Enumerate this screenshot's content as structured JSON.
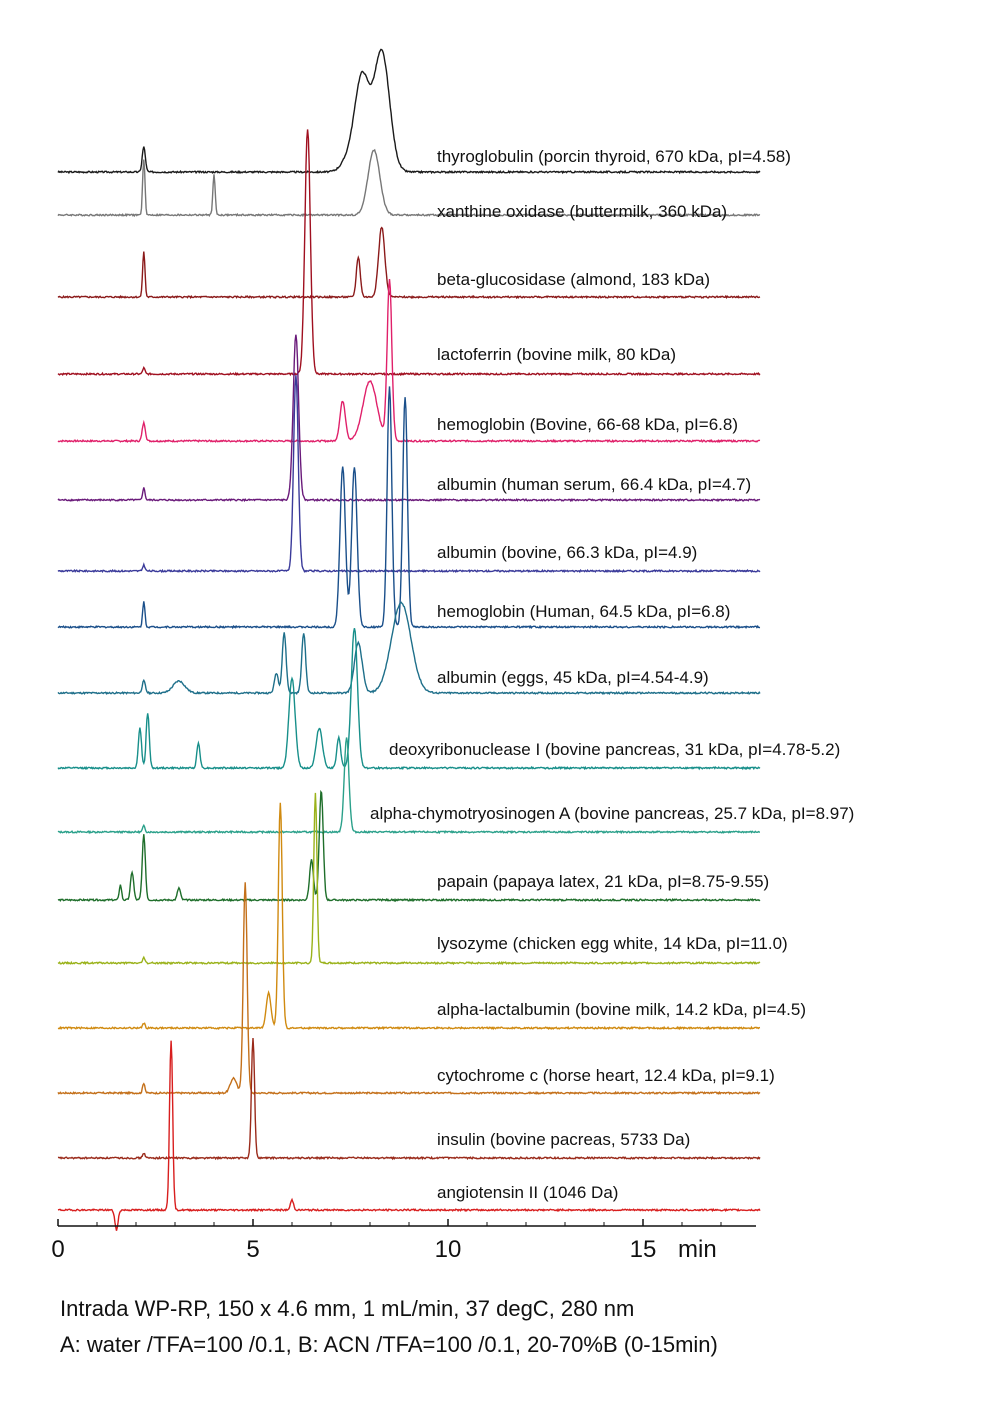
{
  "chart_data": {
    "type": "line",
    "xlabel": "min",
    "x_ticks": [
      0,
      5,
      10,
      15
    ],
    "xlim": [
      0,
      18
    ],
    "caption_line1": "Intrada WP-RP, 150 x 4.6 mm, 1 mL/min, 37 degC, 280 nm",
    "caption_line2": "A: water /TFA=100 /0.1, B: ACN /TFA=100 /0.1, 20-70%B (0-15min)",
    "series": [
      {
        "name": "thyroglobulin (porcin thyroid, 670 kDa, pI=4.58)",
        "color": "#1a1a1a",
        "peaks": [
          [
            2.2,
            25,
            0.04
          ],
          [
            7.8,
            90,
            0.18
          ],
          [
            8.3,
            120,
            0.2
          ],
          [
            7.5,
            15,
            0.2
          ]
        ]
      },
      {
        "name": "xanthine oxidase (buttermilk, 360 kDa)",
        "color": "#777777",
        "peaks": [
          [
            2.2,
            55,
            0.03
          ],
          [
            4.0,
            40,
            0.03
          ],
          [
            8.1,
            65,
            0.15
          ]
        ]
      },
      {
        "name": "beta-glucosidase (almond, 183 kDa)",
        "color": "#8b1a1a",
        "peaks": [
          [
            2.2,
            45,
            0.03
          ],
          [
            7.7,
            40,
            0.05
          ],
          [
            8.3,
            70,
            0.08
          ]
        ]
      },
      {
        "name": "lactoferrin (bovine milk, 80 kDa)",
        "color": "#a01020",
        "peaks": [
          [
            2.2,
            6,
            0.03
          ],
          [
            6.4,
            245,
            0.07
          ]
        ]
      },
      {
        "name": "hemoglobin (Bovine, 66-68 kDa, pI=6.8)",
        "color": "#e0206a",
        "peaks": [
          [
            2.2,
            18,
            0.04
          ],
          [
            7.3,
            40,
            0.07
          ],
          [
            8.0,
            60,
            0.18
          ],
          [
            8.5,
            160,
            0.06
          ]
        ]
      },
      {
        "name": "albumin (human serum, 66.4 kDa, pI=4.7)",
        "color": "#6a1a7a",
        "peaks": [
          [
            2.2,
            12,
            0.03
          ],
          [
            6.1,
            165,
            0.07
          ]
        ]
      },
      {
        "name": "albumin (bovine, 66.3 kDa, pI=4.9)",
        "color": "#3a3a9a",
        "peaks": [
          [
            2.2,
            6,
            0.03
          ],
          [
            6.1,
            195,
            0.06
          ]
        ]
      },
      {
        "name": "hemoglobin (Human, 64.5 kDa, pI=6.8)",
        "color": "#1a4f8a",
        "peaks": [
          [
            2.2,
            25,
            0.03
          ],
          [
            7.3,
            160,
            0.07
          ],
          [
            7.6,
            160,
            0.07
          ],
          [
            8.5,
            240,
            0.06
          ],
          [
            8.9,
            230,
            0.06
          ]
        ]
      },
      {
        "name": "albumin (eggs, 45 kDa, pI=4.54-4.9)",
        "color": "#1e6f8a",
        "peaks": [
          [
            2.2,
            12,
            0.04
          ],
          [
            3.1,
            12,
            0.15
          ],
          [
            5.6,
            20,
            0.05
          ],
          [
            5.8,
            60,
            0.05
          ],
          [
            6.3,
            60,
            0.05
          ],
          [
            7.7,
            50,
            0.1
          ],
          [
            8.8,
            90,
            0.25
          ]
        ]
      },
      {
        "name": "deoxyribonuclease I (bovine pancreas, 31 kDa, pI=4.78-5.2)",
        "color": "#178f8a",
        "peaks": [
          [
            2.1,
            40,
            0.04
          ],
          [
            2.3,
            55,
            0.04
          ],
          [
            3.6,
            25,
            0.04
          ],
          [
            6.0,
            90,
            0.08
          ],
          [
            6.7,
            40,
            0.08
          ],
          [
            7.2,
            30,
            0.05
          ],
          [
            7.6,
            140,
            0.08
          ]
        ]
      },
      {
        "name": "alpha-chymotryosinogen A (bovine pancreas, 25.7 kDa, pI=8.97)",
        "color": "#2aa08a",
        "peaks": [
          [
            2.2,
            6,
            0.03
          ],
          [
            7.4,
            95,
            0.06
          ]
        ]
      },
      {
        "name": "papain (papaya latex, 21 kDa, pI=8.75-9.55)",
        "color": "#1e6e2a",
        "peaks": [
          [
            1.6,
            15,
            0.03
          ],
          [
            1.9,
            28,
            0.04
          ],
          [
            2.2,
            65,
            0.04
          ],
          [
            3.1,
            12,
            0.04
          ],
          [
            6.5,
            40,
            0.05
          ],
          [
            6.75,
            110,
            0.05
          ]
        ]
      },
      {
        "name": "lysozyme (chicken egg white, 14 kDa, pI=11.0)",
        "color": "#9ab21a",
        "peaks": [
          [
            2.2,
            5,
            0.03
          ],
          [
            6.6,
            170,
            0.04
          ]
        ]
      },
      {
        "name": "alpha-lactalbumin (bovine milk, 14.2 kDa, pI=4.5)",
        "color": "#d08a10",
        "peaks": [
          [
            2.2,
            5,
            0.03
          ],
          [
            5.4,
            35,
            0.06
          ],
          [
            5.7,
            225,
            0.05
          ]
        ]
      },
      {
        "name": "cytochrome c (horse heart, 12.4 kDa, pI=9.1)",
        "color": "#c4701a",
        "peaks": [
          [
            2.2,
            10,
            0.03
          ],
          [
            4.5,
            15,
            0.08
          ],
          [
            4.8,
            210,
            0.05
          ]
        ]
      },
      {
        "name": "insulin (bovine pacreas, 5733 Da)",
        "color": "#9a2a1a",
        "peaks": [
          [
            2.2,
            5,
            0.03
          ],
          [
            5.0,
            120,
            0.04
          ]
        ]
      },
      {
        "name": "angiotensin II (1046 Da)",
        "color": "#d81e1e",
        "peaks": [
          [
            1.5,
            -20,
            0.04
          ],
          [
            2.9,
            170,
            0.04
          ],
          [
            6.0,
            10,
            0.04
          ]
        ]
      }
    ]
  }
}
